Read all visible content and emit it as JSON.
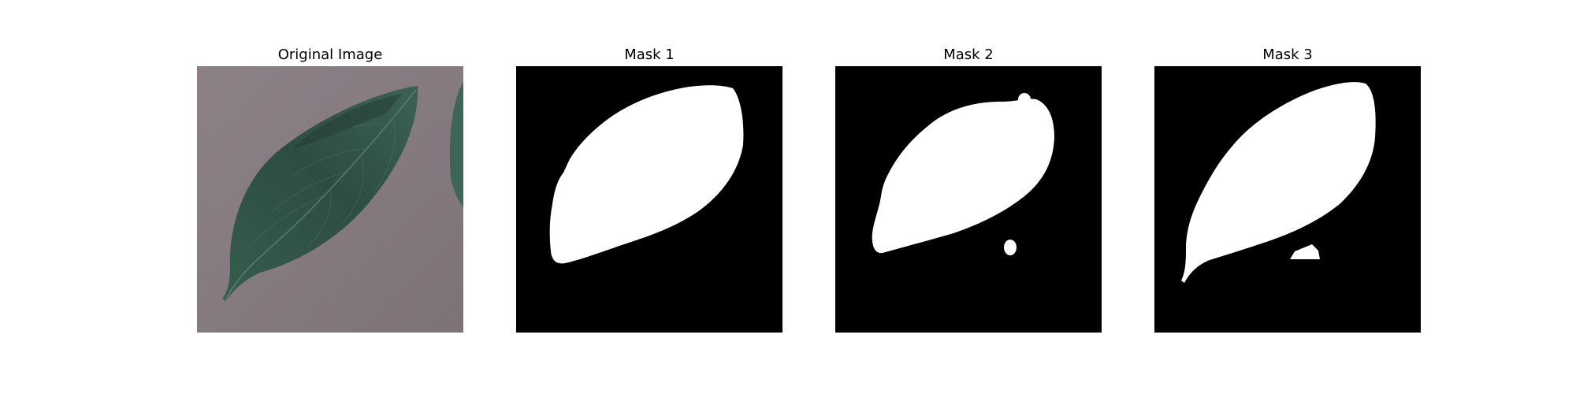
{
  "panels": [
    {
      "title": "Original Image"
    },
    {
      "title": "Mask 1"
    },
    {
      "title": "Mask 2"
    },
    {
      "title": "Mask 3"
    }
  ],
  "colors": {
    "background_surface": "#8a7f84",
    "leaf_dark": "#2c4a3f",
    "leaf_mid": "#3e6353",
    "mask_background": "#000000",
    "mask_foreground": "#ffffff"
  }
}
